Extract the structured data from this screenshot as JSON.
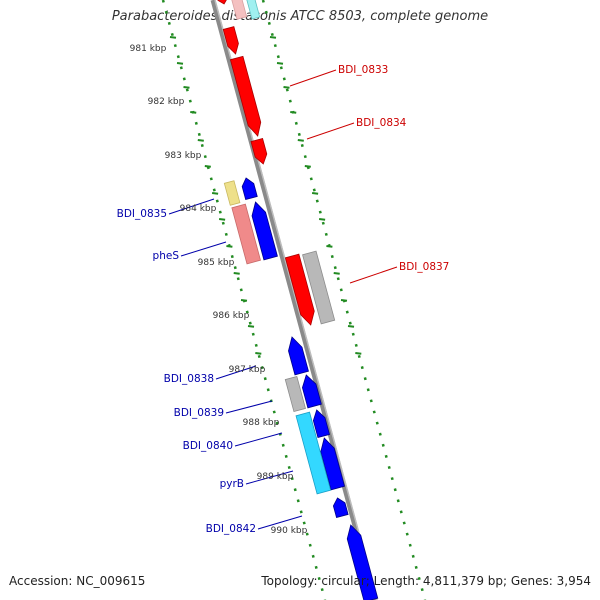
{
  "title": "Parabacteroides distasonis ATCC 8503, complete genome",
  "accession": "Accession: NC_009615",
  "summary": "Topology: circular; Length: 4,811,379 bp; Genes: 3,954",
  "colors": {
    "backbone": "#888888",
    "forward_gene": "#ff0000",
    "reverse_gene": "#0000ff",
    "ruler": "#228B22",
    "forward_label": "#cc0000",
    "reverse_label": "#0000aa"
  },
  "ruler_labels": [
    "981 kbp",
    "982 kbp",
    "983 kbp",
    "984 kbp",
    "985 kbp",
    "986 kbp",
    "987 kbp",
    "988 kbp",
    "989 kbp",
    "990 kbp"
  ],
  "gene_labels": [
    {
      "text": "BDI_0833",
      "strand": "forward"
    },
    {
      "text": "BDI_0834",
      "strand": "forward"
    },
    {
      "text": "BDI_0837",
      "strand": "forward"
    },
    {
      "text": "BDI_0835",
      "strand": "reverse"
    },
    {
      "text": "pheS",
      "strand": "reverse"
    },
    {
      "text": "BDI_0838",
      "strand": "reverse"
    },
    {
      "text": "BDI_0839",
      "strand": "reverse"
    },
    {
      "text": "BDI_0840",
      "strand": "reverse"
    },
    {
      "text": "pyrB",
      "strand": "reverse"
    },
    {
      "text": "BDI_0842",
      "strand": "reverse"
    }
  ]
}
